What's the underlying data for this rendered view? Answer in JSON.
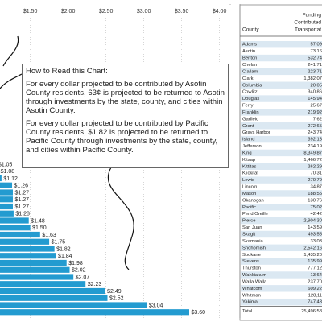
{
  "chart_data": {
    "type": "bar",
    "orientation": "horizontal",
    "annotation": {
      "heading": "How to Read this Chart:",
      "paragraphs": [
        "For every dollar projected to be contributed by Asotin County residents, 63¢ is projected to be returned to Asotin through investments by the state, county, and cities within Asotin County.",
        "For every dollar projected to be contributed by Pacific County residents, $1.82 is projected to be returned to Pacific County through investments by the state, county, and cities within Pacific County."
      ]
    },
    "categories": [
      null,
      null,
      null,
      null,
      null,
      null,
      null,
      null,
      null,
      null,
      null,
      null,
      null,
      null,
      null,
      null,
      null,
      null,
      null,
      null,
      null,
      null
    ],
    "values": [
      1.05,
      1.08,
      1.12,
      1.26,
      1.27,
      1.27,
      1.27,
      1.28,
      1.48,
      1.5,
      1.63,
      1.75,
      1.82,
      1.84,
      1.98,
      2.02,
      2.07,
      2.23,
      2.49,
      2.52,
      3.04,
      3.6
    ],
    "value_labels": [
      "$1.05",
      "$1.08",
      "$1.12",
      "$1.26",
      "$1.27",
      "$1.27",
      "$1.27",
      "$1.28",
      "$1.48",
      "$1.50",
      "$1.63",
      "$1.75",
      "$1.82",
      "$1.84",
      "$1.98",
      "$2.02",
      "$2.07",
      "$2.23",
      "$2.49",
      "$2.52",
      "$3.04",
      "$3.60"
    ],
    "color": "#239bd0",
    "xlim": [
      1.1,
      4.1
    ],
    "xticks": [
      {
        "value": 1.5,
        "label": "$1.50"
      },
      {
        "value": 2.0,
        "label": "$2.00"
      },
      {
        "value": 2.5,
        "label": "$2.50"
      },
      {
        "value": 3.0,
        "label": "$3.00"
      },
      {
        "value": 3.5,
        "label": "$3.50"
      },
      {
        "value": 4.0,
        "label": "$4.00"
      }
    ],
    "grid": true
  },
  "table": {
    "header": [
      "County",
      "Funding",
      "Contributed",
      "Transportat"
    ],
    "rows": [
      [
        "Adams",
        "57,09"
      ],
      [
        "Asotin",
        "73,16"
      ],
      [
        "Benton",
        "532,74"
      ],
      [
        "Chelan",
        "241,71"
      ],
      [
        "Clallam",
        "223,71"
      ],
      [
        "Clark",
        "1,382,07"
      ],
      [
        "Columbia",
        "20,05"
      ],
      [
        "Cowlitz",
        "340,86"
      ],
      [
        "Douglas",
        "145,94"
      ],
      [
        "Ferry",
        "25,67"
      ],
      [
        "Franklin",
        "219,92"
      ],
      [
        "Garfield",
        "7,62"
      ],
      [
        "Grant",
        "272,65"
      ],
      [
        "Grays Harbor",
        "243,74"
      ],
      [
        "Island",
        "392,13"
      ],
      [
        "Jefferson",
        "234,19"
      ],
      [
        "King",
        "8,349,87"
      ],
      [
        "Kitsap",
        "1,466,72"
      ],
      [
        "Kittitas",
        "262,29"
      ],
      [
        "Klickitat",
        "70,31"
      ],
      [
        "Lewis",
        "270,79"
      ],
      [
        "Lincoln",
        "34,87"
      ],
      [
        "Mason",
        "188,55"
      ],
      [
        "Okanogan",
        "130,76"
      ],
      [
        "Pacific",
        "75,02"
      ],
      [
        "Pend Oreille",
        "42,42"
      ],
      [
        "Pierce",
        "2,904,30"
      ],
      [
        "San Juan",
        "143,59"
      ],
      [
        "Skagit",
        "493,55"
      ],
      [
        "Skamania",
        "33,03"
      ],
      [
        "Snohomish",
        "2,542,16"
      ],
      [
        "Spokane",
        "1,435,20"
      ],
      [
        "Stevens",
        "135,99"
      ],
      [
        "Thurston",
        "777,12"
      ],
      [
        "Wahkiakum",
        "13,64"
      ],
      [
        "Walla Walla",
        "237,70"
      ],
      [
        "Whatcom",
        "609,22"
      ],
      [
        "Whitman",
        "128,11"
      ],
      [
        "Yakima",
        "747,43"
      ]
    ],
    "total": [
      "Total",
      "25,496,58"
    ]
  }
}
